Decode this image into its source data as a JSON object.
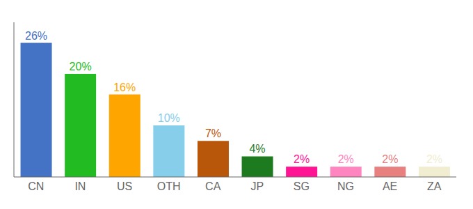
{
  "chart_data": {
    "type": "bar",
    "categories": [
      "CN",
      "IN",
      "US",
      "OTH",
      "CA",
      "JP",
      "SG",
      "NG",
      "AE",
      "ZA"
    ],
    "values": [
      26,
      20,
      16,
      10,
      7,
      4,
      2,
      2,
      2,
      2
    ],
    "value_labels": [
      "26%",
      "20%",
      "16%",
      "10%",
      "7%",
      "4%",
      "2%",
      "2%",
      "2%",
      "2%"
    ],
    "colors": [
      "#4472C4",
      "#22BB22",
      "#FFA500",
      "#87CEEB",
      "#B8560A",
      "#1E7A1E",
      "#FF1493",
      "#FF85C0",
      "#E88080",
      "#F0EDD0"
    ],
    "ylim": [
      0,
      30
    ],
    "grid": false,
    "data_labels": true,
    "tick_labels": "x"
  }
}
